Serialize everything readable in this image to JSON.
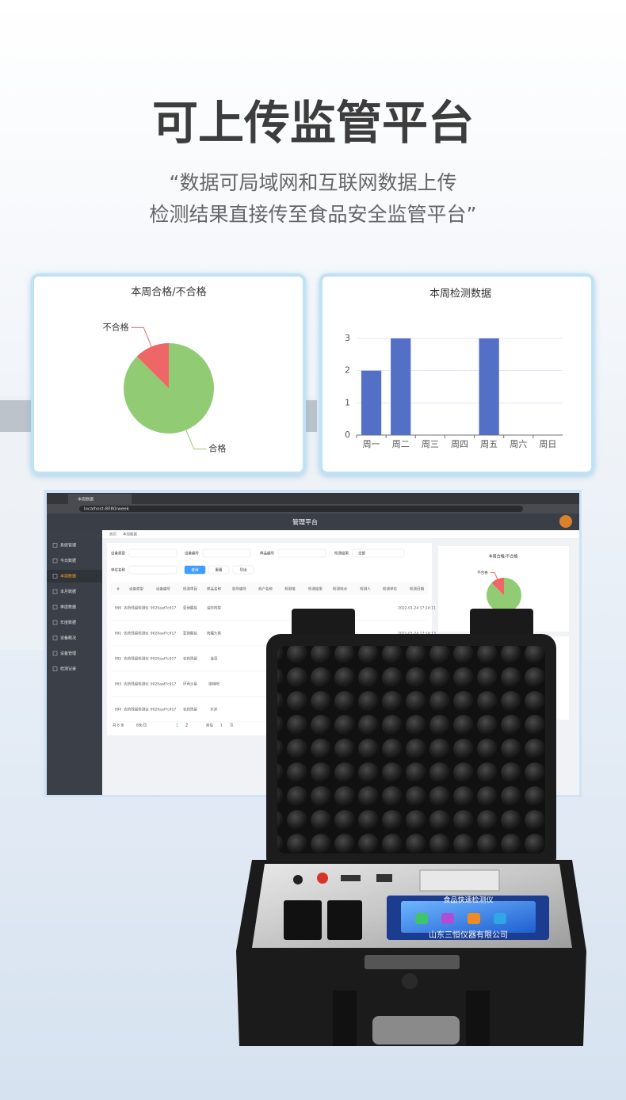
{
  "header": {
    "title": "可上传监管平台",
    "subtitle": [
      "“数据可局域网和互联网数据上传",
      "检测结果直接传至食品安全监管平台”"
    ]
  },
  "chart_data": [
    {
      "type": "pie",
      "title": "本周合格/不合格",
      "slices": [
        {
          "name": "合格",
          "value": 7,
          "color": "#91cc75"
        },
        {
          "name": "不合格",
          "value": 1,
          "color": "#ee6666"
        }
      ]
    },
    {
      "type": "bar",
      "title": "本周检测数据",
      "categories": [
        "周一",
        "周二",
        "周三",
        "周四",
        "周五",
        "周六",
        "周日"
      ],
      "values": [
        2,
        3,
        0,
        0,
        3,
        0,
        0
      ],
      "color": "#5470c6",
      "ylim": [
        0,
        3
      ],
      "yticks": [
        0,
        1,
        2,
        3
      ],
      "grid": true
    }
  ],
  "screenshot": {
    "tab": "本周数据",
    "url": "localhost:8080/week",
    "app_title": "管理平台",
    "breadcrumb": [
      "首页",
      "本周数据"
    ],
    "menu": [
      "系统管理",
      "今日数据",
      "本周数据",
      "本月数据",
      "季度数据",
      "年度数据",
      "设备概况",
      "设备管理",
      "检测记录"
    ],
    "filters": [
      "设备类型",
      "设备编号",
      "样品编号",
      "检测结果",
      "单位名称"
    ],
    "select_all": "全部",
    "buttons": [
      "查询",
      "重置",
      "导出"
    ],
    "columns": [
      "#",
      "设备类型",
      "设备编号",
      "检测项目",
      "样品名称",
      "批号编号",
      "商户名称",
      "检测值",
      "检测结果",
      "检测地点",
      "检测人",
      "检测单位",
      "检测日期"
    ],
    "rows": [
      {
        "cells": [
          "990",
          "农药残留检测仪",
          "9020aaf7c917",
          "亚硝酸盐",
          "油炸肉类"
        ],
        "date": "2022-01-24 17:24:11"
      },
      {
        "cells": [
          "991",
          "农药残留检测仪",
          "9020aaf7c917",
          "亚硝酸盐",
          "肉罐头类"
        ],
        "date": "2022-01-24 17:24:13"
      },
      {
        "cells": [
          "992",
          "农药残留检测仪",
          "9020aaf7c917",
          "农药残留",
          "韭菜"
        ]
      },
      {
        "cells": [
          "993",
          "农药残留检测仪",
          "9020aaf7c917",
          "环丙沙星",
          "咖啡吧"
        ]
      },
      {
        "cells": [
          "994",
          "农药残留检测仪",
          "9020aaf7c917",
          "农药残留",
          "水芹"
        ]
      }
    ],
    "pagination": {
      "total": "共 8 条",
      "page_size": "8条/页",
      "pages": [
        "1",
        "2"
      ],
      "goto": "前往",
      "goto_page": "1",
      "page_unit": "页"
    }
  },
  "device": {
    "screen_title": "食品快速检测仪",
    "maker": "山东三恒仪器有限公司"
  }
}
